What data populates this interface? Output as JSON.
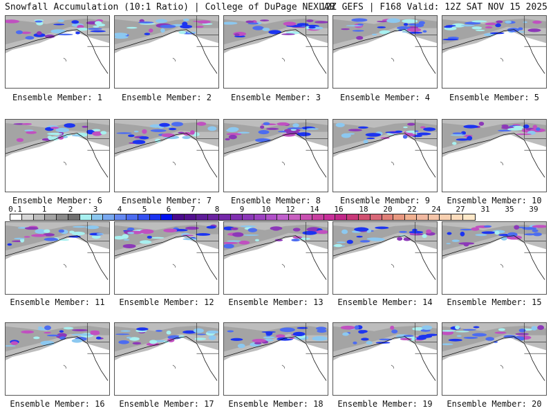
{
  "header": {
    "title_left": "Snowfall Accumulation (10:1 Ratio) | College of DuPage NEXLAB",
    "title_right": "12Z GEFS | F168 Valid: 12Z SAT NOV 15 2025"
  },
  "panels": [
    {
      "label": "Ensemble Member: 1"
    },
    {
      "label": "Ensemble Member: 2"
    },
    {
      "label": "Ensemble Member: 3"
    },
    {
      "label": "Ensemble Member: 4"
    },
    {
      "label": "Ensemble Member: 5"
    },
    {
      "label": "Ensemble Member: 6"
    },
    {
      "label": "Ensemble Member: 7"
    },
    {
      "label": "Ensemble Member: 8"
    },
    {
      "label": "Ensemble Member: 9"
    },
    {
      "label": "Ensemble Member: 10"
    },
    {
      "label": "Ensemble Member: 11"
    },
    {
      "label": "Ensemble Member: 12"
    },
    {
      "label": "Ensemble Member: 13"
    },
    {
      "label": "Ensemble Member: 14"
    },
    {
      "label": "Ensemble Member: 15"
    },
    {
      "label": "Ensemble Member: 16"
    },
    {
      "label": "Ensemble Member: 17"
    },
    {
      "label": "Ensemble Member: 18"
    },
    {
      "label": "Ensemble Member: 19"
    },
    {
      "label": "Ensemble Member: 20"
    }
  ],
  "colorbar": {
    "tick_labels": [
      "0.1",
      "1",
      "2",
      "3",
      "4",
      "5",
      "6",
      "7",
      "8",
      "9",
      "10",
      "12",
      "14",
      "16",
      "18",
      "20",
      "22",
      "24",
      "27",
      "31",
      "35",
      "39"
    ],
    "colors": [
      "#ffffff",
      "#d6d6d6",
      "#bdbdbd",
      "#a3a3a3",
      "#8a8a8a",
      "#707070",
      "#a8f0f0",
      "#8cc8f0",
      "#78a8f0",
      "#6488f0",
      "#4c6cf0",
      "#3450f0",
      "#1c34f0",
      "#0010f0",
      "#4a0a8c",
      "#52108e",
      "#5e1c98",
      "#6a22a0",
      "#7428a8",
      "#8030b0",
      "#8c38b8",
      "#9c42c0",
      "#b050c8",
      "#c060cc",
      "#c860c0",
      "#c850b0",
      "#c840a0",
      "#c8309a",
      "#c02888",
      "#c83878",
      "#d05070",
      "#d86878",
      "#e08078",
      "#e89880",
      "#f0b090",
      "#f0b8a0",
      "#f4c4a8",
      "#f8d0b0",
      "#fcdcbc",
      "#fee8c8"
    ]
  }
}
